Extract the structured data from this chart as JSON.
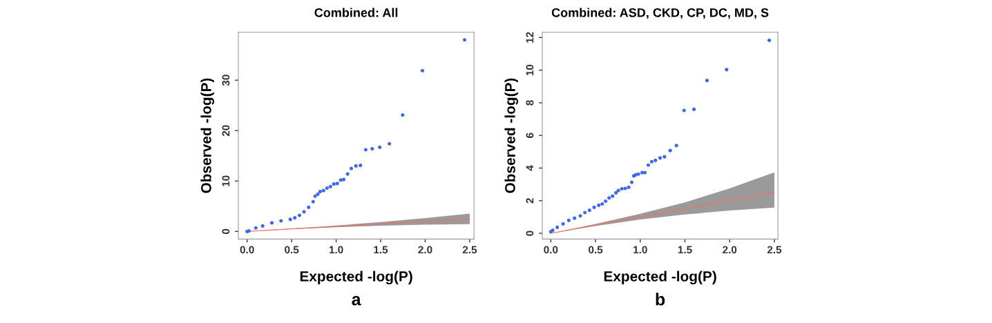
{
  "chart_data": [
    {
      "type": "scatter",
      "title": "Combined: All",
      "xlabel": "Expected -log(P)",
      "ylabel": "Observed -log(P)",
      "annotations": [
        "a"
      ],
      "grid": false,
      "legend": false,
      "xlim": [
        -0.098,
        2.548
      ],
      "ylim": [
        -1.5,
        39.5
      ],
      "xticks": [
        {
          "value": 0,
          "label": "0.0"
        },
        {
          "value": 0.5,
          "label": "0.5"
        },
        {
          "value": 1,
          "label": "1.0"
        },
        {
          "value": 1.5,
          "label": "1.5"
        },
        {
          "value": 2,
          "label": "2.0"
        },
        {
          "value": 2.5,
          "label": "2.5"
        }
      ],
      "yticks": [
        0,
        10,
        20,
        30
      ],
      "series": [
        {
          "type": "line",
          "marker": "none",
          "color": "#f07070",
          "x": [
            0,
            0.5,
            1.0,
            1.5,
            2.0,
            2.5
          ],
          "values": [
            0,
            0.5,
            1.0,
            1.5,
            2.0,
            2.5
          ],
          "lower": [
            0,
            0.45,
            0.85,
            1.13,
            1.35,
            1.45
          ],
          "upper": [
            0,
            0.56,
            1.18,
            1.85,
            2.65,
            3.55
          ]
        },
        {
          "marker": "circle",
          "color": "#4169e1",
          "x": [
            0.0,
            0.02,
            0.098,
            0.175,
            0.278,
            0.381,
            0.485,
            0.536,
            0.588,
            0.639,
            0.691,
            0.742,
            0.763,
            0.794,
            0.82,
            0.858,
            0.897,
            0.936,
            0.974,
            1.013,
            1.052,
            1.085,
            1.129,
            1.17,
            1.222,
            1.273,
            1.332,
            1.405,
            1.49,
            1.598,
            1.747,
            1.969,
            2.443
          ],
          "values": [
            0.0,
            0.1,
            0.7,
            1.1,
            1.7,
            2.1,
            2.4,
            2.7,
            3.2,
            3.9,
            4.8,
            5.9,
            7.0,
            7.4,
            7.9,
            8.1,
            8.6,
            8.9,
            9.4,
            9.5,
            10.2,
            10.3,
            11.4,
            12.5,
            13.0,
            13.1,
            16.2,
            16.4,
            16.7,
            17.4,
            23.1,
            31.9,
            38.0
          ]
        }
      ]
    },
    {
      "type": "scatter",
      "title": "Combined: ASD, CKD, CP, DC, MD, S",
      "xlabel": "Expected -log(P)",
      "ylabel": "Observed -log(P)",
      "annotations": [
        "b"
      ],
      "grid": false,
      "legend": false,
      "xlim": [
        -0.095,
        2.54
      ],
      "ylim": [
        -0.35,
        12.32
      ],
      "xticks": [
        {
          "value": 0,
          "label": "0.0"
        },
        {
          "value": 0.5,
          "label": "0.5"
        },
        {
          "value": 1,
          "label": "1.0"
        },
        {
          "value": 1.5,
          "label": "1.5"
        },
        {
          "value": 2,
          "label": "2.0"
        },
        {
          "value": 2.5,
          "label": "2.5"
        }
      ],
      "yticks": [
        0,
        2,
        4,
        6,
        8,
        10,
        12
      ],
      "series": [
        {
          "type": "line",
          "marker": "none",
          "color": "#f07070",
          "x": [
            0,
            0.5,
            1.0,
            1.5,
            2.0,
            2.5
          ],
          "values": [
            0,
            0.5,
            1.0,
            1.5,
            2.0,
            2.5
          ],
          "lower": [
            0,
            0.45,
            0.85,
            1.15,
            1.4,
            1.58
          ],
          "upper": [
            0,
            0.57,
            1.2,
            1.9,
            2.75,
            3.74
          ]
        },
        {
          "marker": "circle",
          "color": "#4169e1",
          "x": [
            0.0,
            0.021,
            0.072,
            0.137,
            0.201,
            0.265,
            0.33,
            0.381,
            0.433,
            0.485,
            0.536,
            0.575,
            0.613,
            0.652,
            0.691,
            0.729,
            0.755,
            0.794,
            0.832,
            0.871,
            0.905,
            0.928,
            0.948,
            0.979,
            1.021,
            1.052,
            1.09,
            1.129,
            1.17,
            1.222,
            1.271,
            1.335,
            1.405,
            1.49,
            1.601,
            1.747,
            1.966,
            2.443
          ],
          "values": [
            0.1,
            0.19,
            0.37,
            0.58,
            0.79,
            0.93,
            1.07,
            1.27,
            1.41,
            1.59,
            1.72,
            1.8,
            1.97,
            2.17,
            2.28,
            2.48,
            2.62,
            2.73,
            2.75,
            2.82,
            3.13,
            3.52,
            3.58,
            3.63,
            3.72,
            3.72,
            4.18,
            4.39,
            4.47,
            4.62,
            4.69,
            5.07,
            5.38,
            7.53,
            7.6,
            9.37,
            10.03,
            11.83
          ]
        }
      ]
    }
  ]
}
